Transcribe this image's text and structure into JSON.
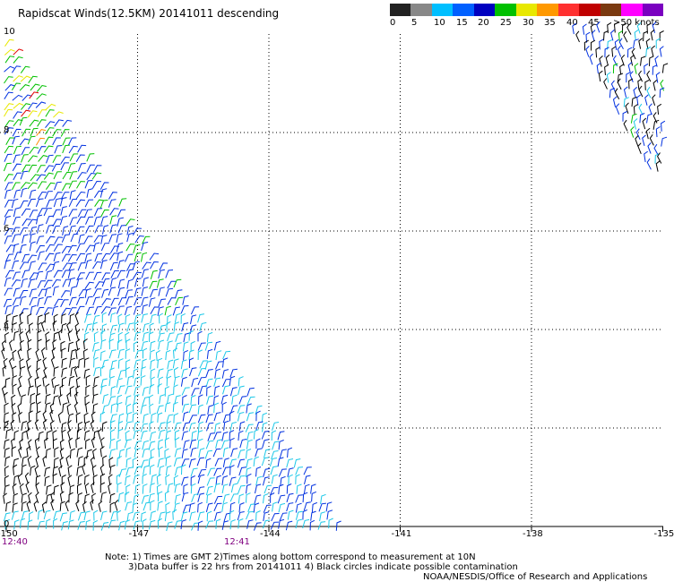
{
  "title": "Rapidscat Winds(12.5KM) 20141011 descending",
  "legend": {
    "labels": [
      "0",
      "5",
      "10",
      "15",
      "20",
      "25",
      "30",
      "35",
      "40",
      "45",
      ">50 knots"
    ],
    "colors": [
      "#222222",
      "#888888",
      "#00bfff",
      "#0060ff",
      "#0000c0",
      "#00c000",
      "#e8e800",
      "#ff9900",
      "#ff3030",
      "#c00000",
      "#7a3a10",
      "#ff00ff",
      "#7a00c0"
    ]
  },
  "axes": {
    "lon_labels": [
      "-150",
      "-147",
      "-144",
      "-141",
      "-138",
      "-135"
    ],
    "lat_labels": [
      "0",
      "2",
      "4",
      "6",
      "8",
      "10"
    ]
  },
  "times": [
    "12:40",
    "12:41"
  ],
  "notes": {
    "line1": "Note: 1) Times are GMT 2)Times along bottom correspond to measurement at 10N",
    "line2": "3)Data buffer is 22 hrs from 20141011 4) Black circles indicate possible contamination",
    "credit": "NOAA/NESDIS/Office of Research and Applications"
  },
  "colors": {
    "barb_black": "#000000",
    "barb_cyan": "#1cc8e8",
    "barb_blue": "#0030e0",
    "barb_green": "#00c000",
    "barb_yellow": "#e8e800",
    "barb_orange": "#ff8c00",
    "barb_red": "#e00000",
    "time_label": "#800080"
  }
}
